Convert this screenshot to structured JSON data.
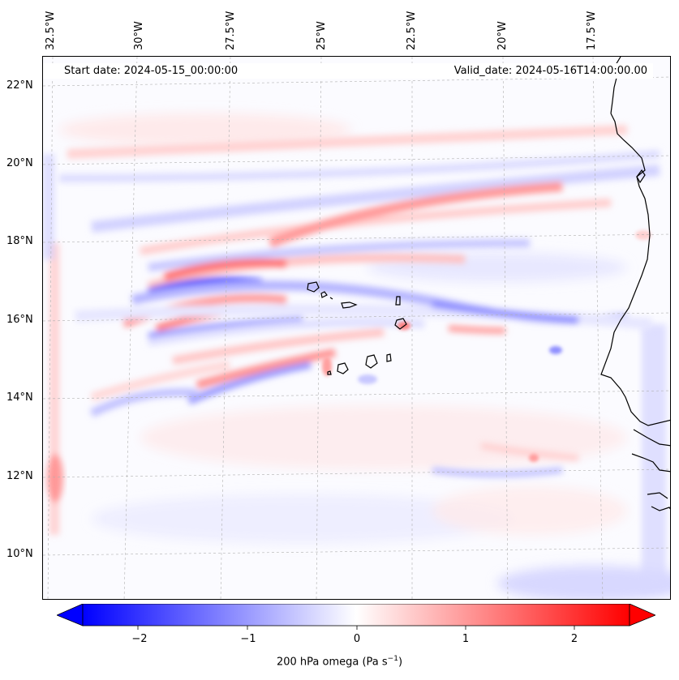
{
  "map": {
    "start_label": "Start date: 2024-05-15_00:00:00",
    "valid_label": "Valid_date: 2024-05-16T14:00:00.00",
    "longitude_labels": [
      "32.5°W",
      "30°W",
      "27.5°W",
      "25°W",
      "22.5°W",
      "20°W",
      "17.5°W"
    ],
    "latitude_labels": [
      "22°N",
      "20°N",
      "18°N",
      "16°N",
      "14°N",
      "12°N",
      "10°N"
    ],
    "field": "200 hPa omega",
    "colors": {
      "negative": "#0000ff",
      "zero": "#ffffff",
      "positive": "#ff0000",
      "coast": "#000000",
      "grid": "#b0b0b0"
    }
  },
  "colorbar": {
    "title": "200 hPa omega (Pa s",
    "title_exponent": "−1",
    "title_close": ")",
    "tick_labels": [
      "−2",
      "−1",
      "0",
      "1",
      "2"
    ],
    "range": [
      -2.5,
      2.5
    ]
  }
}
